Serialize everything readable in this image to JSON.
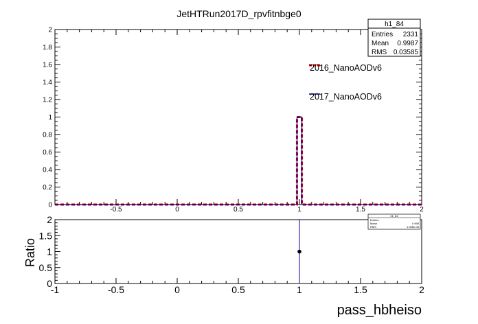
{
  "chart_data": [
    {
      "type": "histogram",
      "title": "JetHTRun2017D_rpvfitnbge0",
      "xlim": [
        -1,
        2
      ],
      "ylim": [
        0,
        2
      ],
      "x_ticks": [
        "-0.5",
        "0",
        "0.5",
        "1",
        "1.5",
        "2"
      ],
      "y_ticks": [
        "0",
        "0.2",
        "0.4",
        "0.6",
        "0.8",
        "1",
        "1.2",
        "1.4",
        "1.6",
        "1.8",
        "2"
      ],
      "bin_edges": [
        0.98,
        1.02
      ],
      "series": [
        {
          "name": "2016_NanoAODv6",
          "color": "#cc0000",
          "style": "dashed",
          "values": [
            1
          ]
        },
        {
          "name": "2017_NanoAODv6",
          "color": "#000099",
          "style": "solid",
          "values": [
            1
          ]
        }
      ],
      "stats_box": {
        "name": "h1_84",
        "rows": [
          {
            "label": "Entries",
            "value": "2331"
          },
          {
            "label": "Mean",
            "value": "0.9987"
          },
          {
            "label": "RMS",
            "value": "0.03585"
          }
        ]
      }
    },
    {
      "type": "scatter",
      "xlabel": "pass_hbheiso",
      "ylabel": "Ratio",
      "xlim": [
        -1,
        2
      ],
      "ylim": [
        0,
        2
      ],
      "x_ticks": [
        "-1",
        "-0.5",
        "0",
        "0.5",
        "1",
        "1.5",
        "2"
      ],
      "y_ticks": [
        "0",
        "0.5",
        "1",
        "1.5",
        "2"
      ],
      "points": [
        {
          "x": 1,
          "y": 1,
          "err_low": 0,
          "err_high": 2
        }
      ],
      "stats_box": {
        "name": "h1_84",
        "rows": [
          {
            "label": "Entries",
            "value": ""
          },
          {
            "label": "Mean",
            "value": "0.998"
          },
          {
            "label": "RMS",
            "value": "1.056e-08"
          }
        ]
      }
    }
  ]
}
